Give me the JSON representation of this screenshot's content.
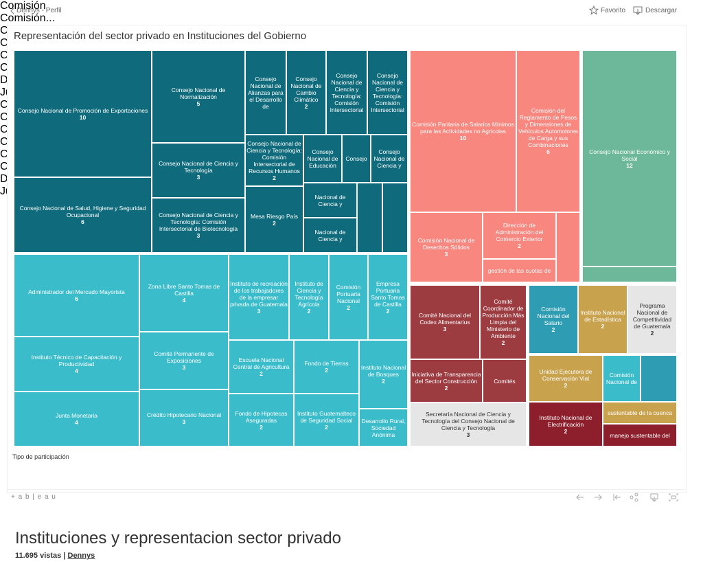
{
  "header": {
    "back": "Dennys - Perfil",
    "favorite": "Favorito",
    "download": "Descargar"
  },
  "chart_data": {
    "type": "treemap",
    "title": "Representación del sector privado en Instituciones del Gobierno",
    "items": [
      {
        "label": "Consejo Nacional de Promoción de Exportaciones",
        "value": 10,
        "color": "#0f6b7b"
      },
      {
        "label": "Consejo Nacional de Salud, Higiene y Seguridad Ocupacional",
        "value": 6,
        "color": "#0f6b7b"
      },
      {
        "label": "Consejo Nacional de Normalización",
        "value": 5,
        "color": "#0f6b7b"
      },
      {
        "label": "Consejo Nacional de Ciencia y Tecnología",
        "value": 3,
        "color": "#0f6b7b"
      },
      {
        "label": "Consejo Nacional de Ciencia y Tecnología: Comisión Intersectorial de Biotecnología",
        "value": 3,
        "color": "#0f6b7b"
      },
      {
        "label": "Consejo Nacional de Alianzas para el Desarrollo de",
        "color": "#0f6b7b"
      },
      {
        "label": "Consejo Nacional de Cambio Climático",
        "value": 2,
        "color": "#0f6b7b"
      },
      {
        "label": "Consejo Nacional de Ciencia y Tecnología: Comisión Intersectorial",
        "color": "#0f6b7b"
      },
      {
        "label": "Consejo Nacional de Ciencia y Tecnología: Comisión Intersectorial",
        "color": "#0f6b7b"
      },
      {
        "label": "Consejo Nacional de Ciencia y Tecnología: Comisión Intersectorial de Recursos Humanos",
        "value": 2,
        "color": "#0f6b7b"
      },
      {
        "label": "Mesa Riesgo País",
        "value": 2,
        "color": "#0f6b7b"
      },
      {
        "label": "Consejo Nacional de Educación",
        "color": "#0f6b7b"
      },
      {
        "label": "Consejo",
        "color": "#0f6b7b"
      },
      {
        "label": "Consejo Nacional de Ciencia y",
        "color": "#0f6b7b"
      },
      {
        "label": "Nacional de Ciencia y",
        "color": "#0f6b7b"
      },
      {
        "label": "Nacional de Ciencia y",
        "color": "#0f6b7b"
      },
      {
        "color": "#0f6b7b"
      },
      {
        "color": "#0f6b7b"
      },
      {
        "label": "Administrador del Mercado Mayorista",
        "value": 6,
        "color": "#3bbccb"
      },
      {
        "label": "Instituto Técnico de Capacitación y Productividad",
        "value": 4,
        "color": "#3bbccb"
      },
      {
        "label": "Junta Monetaria",
        "value": 4,
        "color": "#3bbccb"
      },
      {
        "label": "Zona Libre Santo Tomas de Castilla",
        "value": 4,
        "color": "#3bbccb"
      },
      {
        "label": "Comité Permanente de Exposiciones",
        "value": 3,
        "color": "#3bbccb"
      },
      {
        "label": "Crédito Hipotecario Nacional",
        "value": 3,
        "color": "#3bbccb"
      },
      {
        "label": "Instituto de recreación de los trabajadores de la empresar privada de Guatemala",
        "value": 3,
        "color": "#3bbccb"
      },
      {
        "label": "Instituto de Ciencia y Tecnología Agrícola",
        "value": 2,
        "color": "#3bbccb"
      },
      {
        "label": "Comisión Portuaria Nacional",
        "value": 2,
        "color": "#3bbccb"
      },
      {
        "label": "Empresa Portuaria Santo Tomas de Castilla",
        "value": 2,
        "color": "#3bbccb"
      },
      {
        "label": "Escuela Nacional Central de Agricultura",
        "value": 2,
        "color": "#3bbccb"
      },
      {
        "label": "Fondo de Tierras",
        "value": 2,
        "color": "#3bbccb"
      },
      {
        "label": "Instituto Nacional de Bosques",
        "value": 2,
        "color": "#3bbccb"
      },
      {
        "label": "Fondo de Hipotecas Aseguradas",
        "value": 2,
        "color": "#3bbccb"
      },
      {
        "label": "Instituto Guatemalteco de Seguridad Social",
        "value": 2,
        "color": "#3bbccb"
      },
      {
        "label": "Desarrollo Rural, Sociedad Anónima",
        "color": "#3bbccb"
      },
      {
        "label": "Comisión Paritaria de Salarios Mínimos para las Actividades no Agrícolas",
        "value": 10,
        "color": "#f8877f"
      },
      {
        "label": "Comisión del Reglamento de Pesos y Dimensiones de Vehículos Automotores de Carga y sus Combinaciones",
        "value": 6,
        "color": "#f8877f"
      },
      {
        "label": "Comisión Nacional de Desechos Sólidos",
        "value": 3,
        "color": "#f8877f"
      },
      {
        "label": "Dirección de Administración del Comercio Exterior",
        "value": 2,
        "color": "#f8877f"
      },
      {
        "label": "gestión de las cuotas de",
        "color": "#f8877f"
      },
      {
        "color": "#f8877f"
      },
      {
        "label": "Consejo Nacional Económico y Social",
        "value": 12,
        "color": "#6db89a"
      },
      {
        "color": "#6db89a"
      },
      {
        "label": "Comité Nacional del Codex Alimentarius",
        "value": 3,
        "color": "#9c3b40"
      },
      {
        "label": "Comité Coordinador de Producción Más Limpia del Ministerio de Ambiente",
        "value": 2,
        "color": "#9c3b40"
      },
      {
        "label": "Iniciativa de Transparencia del Sector Construcción",
        "value": 2,
        "color": "#9c3b40"
      },
      {
        "label": "Comités",
        "color": "#9c3b40"
      },
      {
        "label": "Secretaría Nacional de Ciencia y Tecnología del Consejo Nacional de Ciencia y Tecnología",
        "value": 3,
        "color": "#e6e6e6"
      },
      {
        "label": "Comisión Nacional del Salario",
        "value": 2,
        "color": "#2e9cb2"
      },
      {
        "label": "Instituto Nacional de Estadística",
        "value": 2,
        "color": "#c9a24e"
      },
      {
        "label": "Programa Nacional de Competitividad de Guatemala",
        "value": 2,
        "color": "#e6e6e6"
      },
      {
        "label": "Unidad Ejecutora de Conservación Vial",
        "value": 2,
        "color": "#c9a24e"
      },
      {
        "label": "Comisión Nacional de",
        "color": "#3bbccb"
      },
      {
        "color": "#2e9cb2"
      },
      {
        "label": "Instituto Nacional de Electrificación",
        "value": 2,
        "color": "#8c1f2b"
      },
      {
        "label": "sustentable de la cuenca",
        "color": "#c9a24e"
      },
      {
        "label": "manejo sustentable del",
        "color": "#8c1f2b"
      }
    ],
    "legend_title": "Tipo de participación",
    "legend": [
      {
        "name": "Comisión",
        "color": "#f8877f"
      },
      {
        "name": "Comisión...",
        "color": "#2e9cb2"
      },
      {
        "name": "Comité",
        "color": "#9c3b40"
      },
      {
        "name": "Comité N...",
        "color": "#3bbccb"
      },
      {
        "name": "Consejo ...",
        "color": "#c9a24e"
      },
      {
        "name": "Consejo ...",
        "color": "#6db89a"
      },
      {
        "name": "Dirección...",
        "color": "#c9a24e"
      },
      {
        "name": "Junta As...",
        "color": "#e6e6e6"
      },
      {
        "name": "Comisión...",
        "color": "#e6e6e6"
      },
      {
        "name": "Comisión...",
        "color": "#c9a24e"
      },
      {
        "name": "Comité E...",
        "color": "#e6e6e6"
      },
      {
        "name": "Consejo",
        "color": "#0f6b7b"
      },
      {
        "name": "Consejo ...",
        "color": "#9c3b40"
      },
      {
        "name": "Coordina...",
        "color": "#2e9cb2"
      },
      {
        "name": "Directiva...",
        "color": "#8c1f2b"
      },
      {
        "name": "Junta Dir...",
        "color": "#3bbccb"
      }
    ]
  },
  "toolbar": {
    "logo": "+ a b | e a u"
  },
  "footer": {
    "title": "Instituciones y representacion sector privado",
    "views": "11.695 vistas",
    "separator": "|",
    "author": "Dennys"
  }
}
